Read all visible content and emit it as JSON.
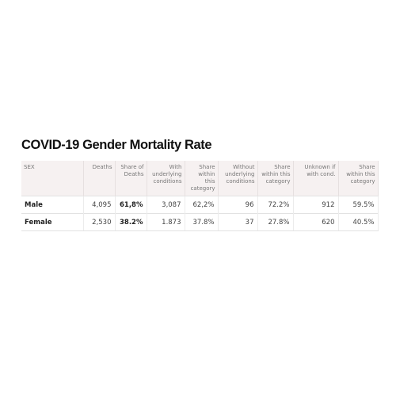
{
  "header": {
    "title": "COVID-19 Gender Mortality Rate"
  },
  "table": {
    "columns": [
      "SEX",
      "Deaths",
      "Share of Deaths",
      "With underlying conditions",
      "Share within this category",
      "Without underlying conditions",
      "Share within this category",
      "Unknown if with cond.",
      "Share within this category"
    ],
    "rows": [
      [
        "Male",
        "4,095",
        "61,8%",
        "3,087",
        "62,2%",
        "96",
        "72.2%",
        "912",
        "59.5%"
      ],
      [
        "Female",
        "2,530",
        "38.2%",
        "1.873",
        "37.8%",
        "37",
        "27.8%",
        "620",
        "40.5%"
      ]
    ]
  }
}
